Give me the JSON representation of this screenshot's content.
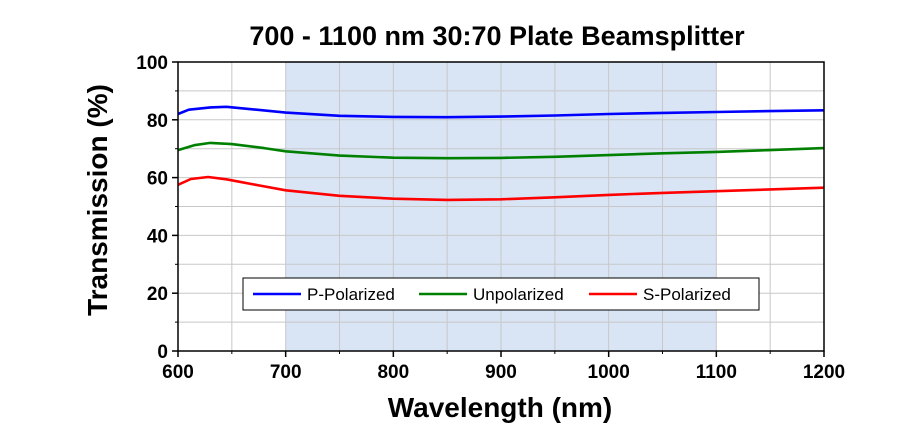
{
  "chart_data": {
    "type": "line",
    "title": "700 - 1100 nm 30:70 Plate Beamsplitter",
    "xlabel": "Wavelength (nm)",
    "ylabel": "Transmission (%)",
    "xlim": [
      600,
      1200
    ],
    "ylim": [
      0,
      100
    ],
    "x_ticks": [
      600,
      700,
      800,
      900,
      1000,
      1100,
      1200
    ],
    "y_ticks": [
      0,
      20,
      40,
      60,
      80,
      100
    ],
    "grid": true,
    "highlight_band": {
      "x_range": [
        700,
        1100
      ],
      "color": "#d9e4f5"
    },
    "legend_position": "bottom-center",
    "series": [
      {
        "name": "P-Polarized",
        "color": "#0000ff",
        "points": [
          [
            600,
            82
          ],
          [
            610,
            83.5
          ],
          [
            630,
            84.3
          ],
          [
            645,
            84.5
          ],
          [
            670,
            83.6
          ],
          [
            700,
            82.5
          ],
          [
            750,
            81.4
          ],
          [
            800,
            81
          ],
          [
            850,
            80.9
          ],
          [
            900,
            81.1
          ],
          [
            950,
            81.5
          ],
          [
            1000,
            82
          ],
          [
            1050,
            82.4
          ],
          [
            1100,
            82.7
          ],
          [
            1150,
            83
          ],
          [
            1200,
            83.3
          ]
        ]
      },
      {
        "name": "Unpolarized",
        "color": "#008000",
        "points": [
          [
            600,
            69.5
          ],
          [
            615,
            71.2
          ],
          [
            630,
            72
          ],
          [
            650,
            71.6
          ],
          [
            680,
            70.2
          ],
          [
            700,
            69.1
          ],
          [
            750,
            67.6
          ],
          [
            800,
            66.9
          ],
          [
            850,
            66.7
          ],
          [
            900,
            66.8
          ],
          [
            950,
            67.2
          ],
          [
            1000,
            67.8
          ],
          [
            1050,
            68.4
          ],
          [
            1100,
            68.9
          ],
          [
            1150,
            69.5
          ],
          [
            1200,
            70.2
          ]
        ]
      },
      {
        "name": "S-Polarized",
        "color": "#ff0000",
        "points": [
          [
            600,
            57.5
          ],
          [
            612,
            59.5
          ],
          [
            628,
            60.2
          ],
          [
            645,
            59.4
          ],
          [
            675,
            57.3
          ],
          [
            700,
            55.6
          ],
          [
            750,
            53.7
          ],
          [
            800,
            52.7
          ],
          [
            850,
            52.3
          ],
          [
            900,
            52.5
          ],
          [
            950,
            53.2
          ],
          [
            1000,
            54
          ],
          [
            1050,
            54.7
          ],
          [
            1100,
            55.3
          ],
          [
            1150,
            55.9
          ],
          [
            1200,
            56.5
          ]
        ]
      }
    ]
  }
}
